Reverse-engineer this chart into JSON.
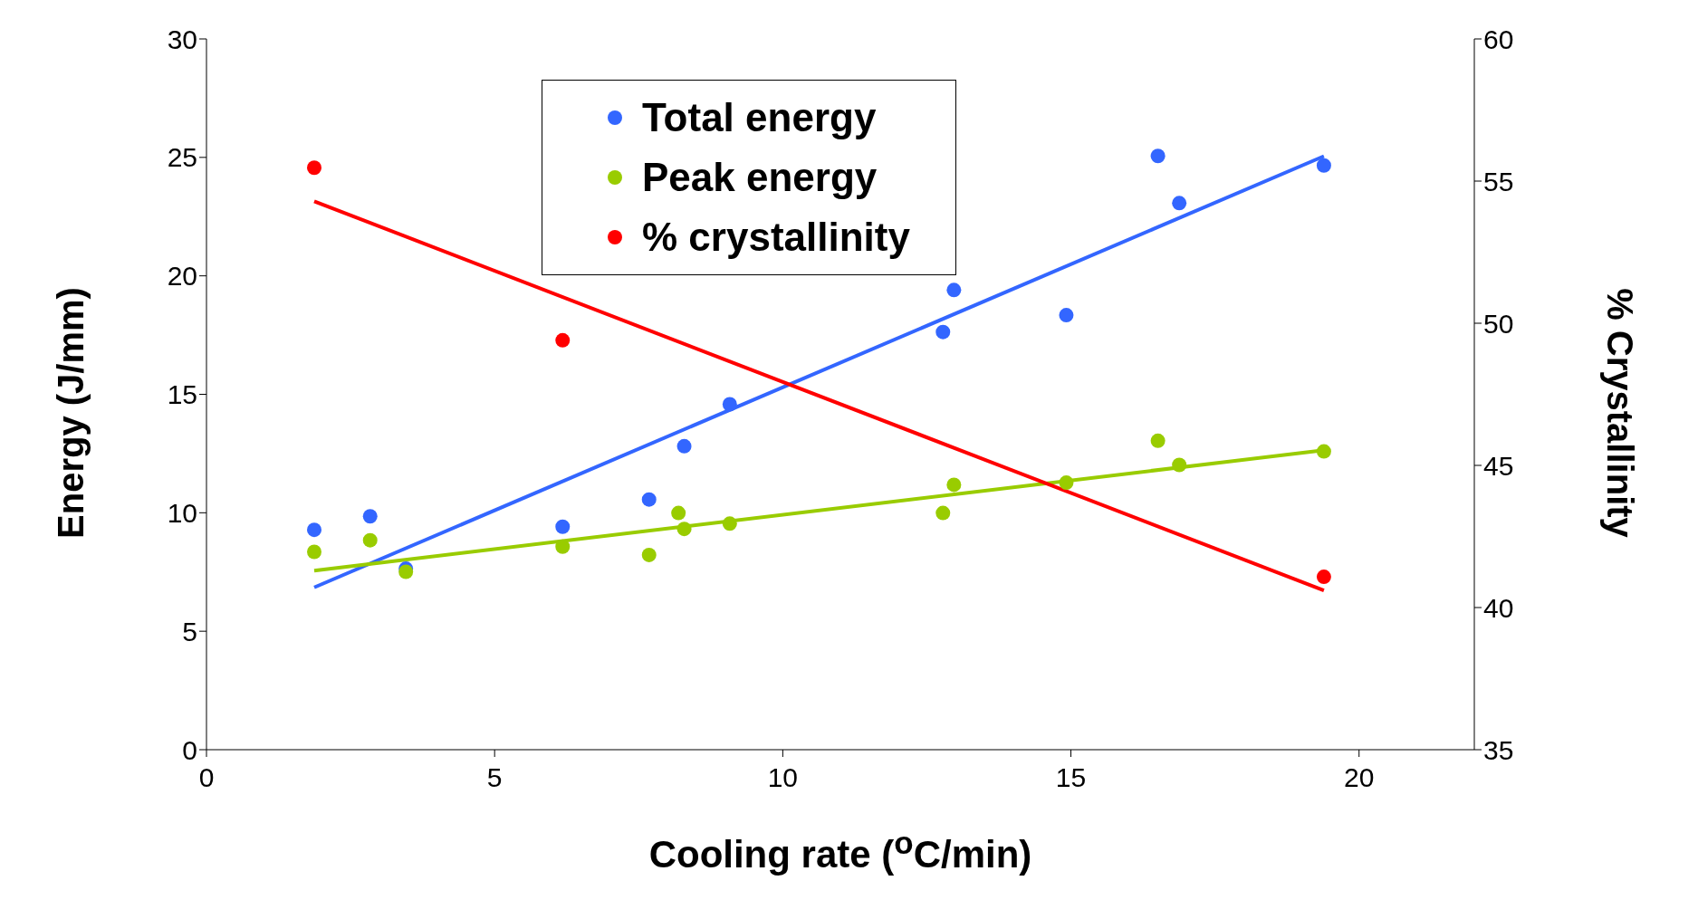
{
  "chart_data": {
    "type": "scatter",
    "xlabel": "Cooling rate ($^{o}$C/min)",
    "ylabel": "Energy (J/mm)",
    "y2label": "% Crystallinity",
    "xlim": [
      0,
      22
    ],
    "xticks": [
      0,
      5,
      10,
      15,
      20
    ],
    "ylim": [
      0,
      30
    ],
    "yticks": [
      0,
      5,
      10,
      15,
      20,
      25,
      30
    ],
    "y2lim": [
      35,
      60
    ],
    "y2ticks": [
      35,
      40,
      45,
      50,
      55,
      60
    ],
    "legend": "top",
    "marker": "circle",
    "series": [
      {
        "name": "Total energy",
        "color": "#3366ff",
        "x": [
          1.87,
          2.84,
          3.46,
          6.18,
          7.68,
          8.29,
          9.08,
          12.78,
          12.97,
          14.92,
          16.51,
          16.88,
          19.39
        ],
        "values": [
          9.28,
          9.85,
          7.64,
          9.41,
          10.56,
          12.81,
          14.58,
          17.63,
          19.4,
          18.34,
          25.06,
          23.07,
          24.66
        ]
      },
      {
        "name": "Peak energy",
        "color": "#99cc00",
        "x": [
          1.87,
          2.84,
          3.46,
          6.18,
          7.68,
          8.19,
          8.29,
          9.08,
          12.78,
          12.97,
          14.92,
          16.51,
          16.88,
          19.39
        ],
        "values": [
          8.35,
          8.84,
          7.51,
          8.57,
          8.22,
          9.99,
          9.32,
          9.54,
          9.99,
          11.18,
          11.27,
          13.04,
          12.02,
          12.59
        ]
      },
      {
        "name": "% crystallinity",
        "color": "#ff0000",
        "axis": "y2",
        "x": [
          1.87,
          6.18,
          19.39
        ],
        "values": [
          55.47,
          49.4,
          41.08
        ]
      },
      {
        "type": "line",
        "color": "#3366ff",
        "marker": "none",
        "x": [
          1.87,
          19.39
        ],
        "values": [
          6.85,
          25.05
        ]
      },
      {
        "type": "line",
        "color": "#99cc00",
        "marker": "none",
        "x": [
          1.87,
          19.39
        ],
        "values": [
          7.56,
          12.64
        ]
      },
      {
        "type": "line",
        "color": "#ff0000",
        "marker": "none",
        "axis": "y2",
        "x": [
          1.87,
          19.39
        ],
        "values": [
          54.29,
          40.6
        ]
      }
    ]
  }
}
